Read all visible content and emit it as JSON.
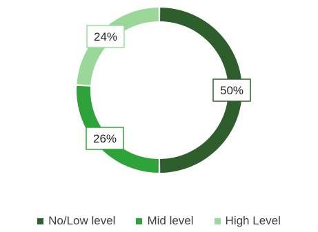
{
  "chart_data": {
    "type": "pie",
    "variant": "donut",
    "title": "",
    "categories": [
      "No/Low level",
      "Mid level",
      "High Level"
    ],
    "values": [
      50,
      26,
      24
    ],
    "data_labels": [
      "50%",
      "26%",
      "24%"
    ],
    "colors": [
      "#2e5e2b",
      "#2ea33a",
      "#9ad89a"
    ],
    "legend_position": "bottom"
  }
}
